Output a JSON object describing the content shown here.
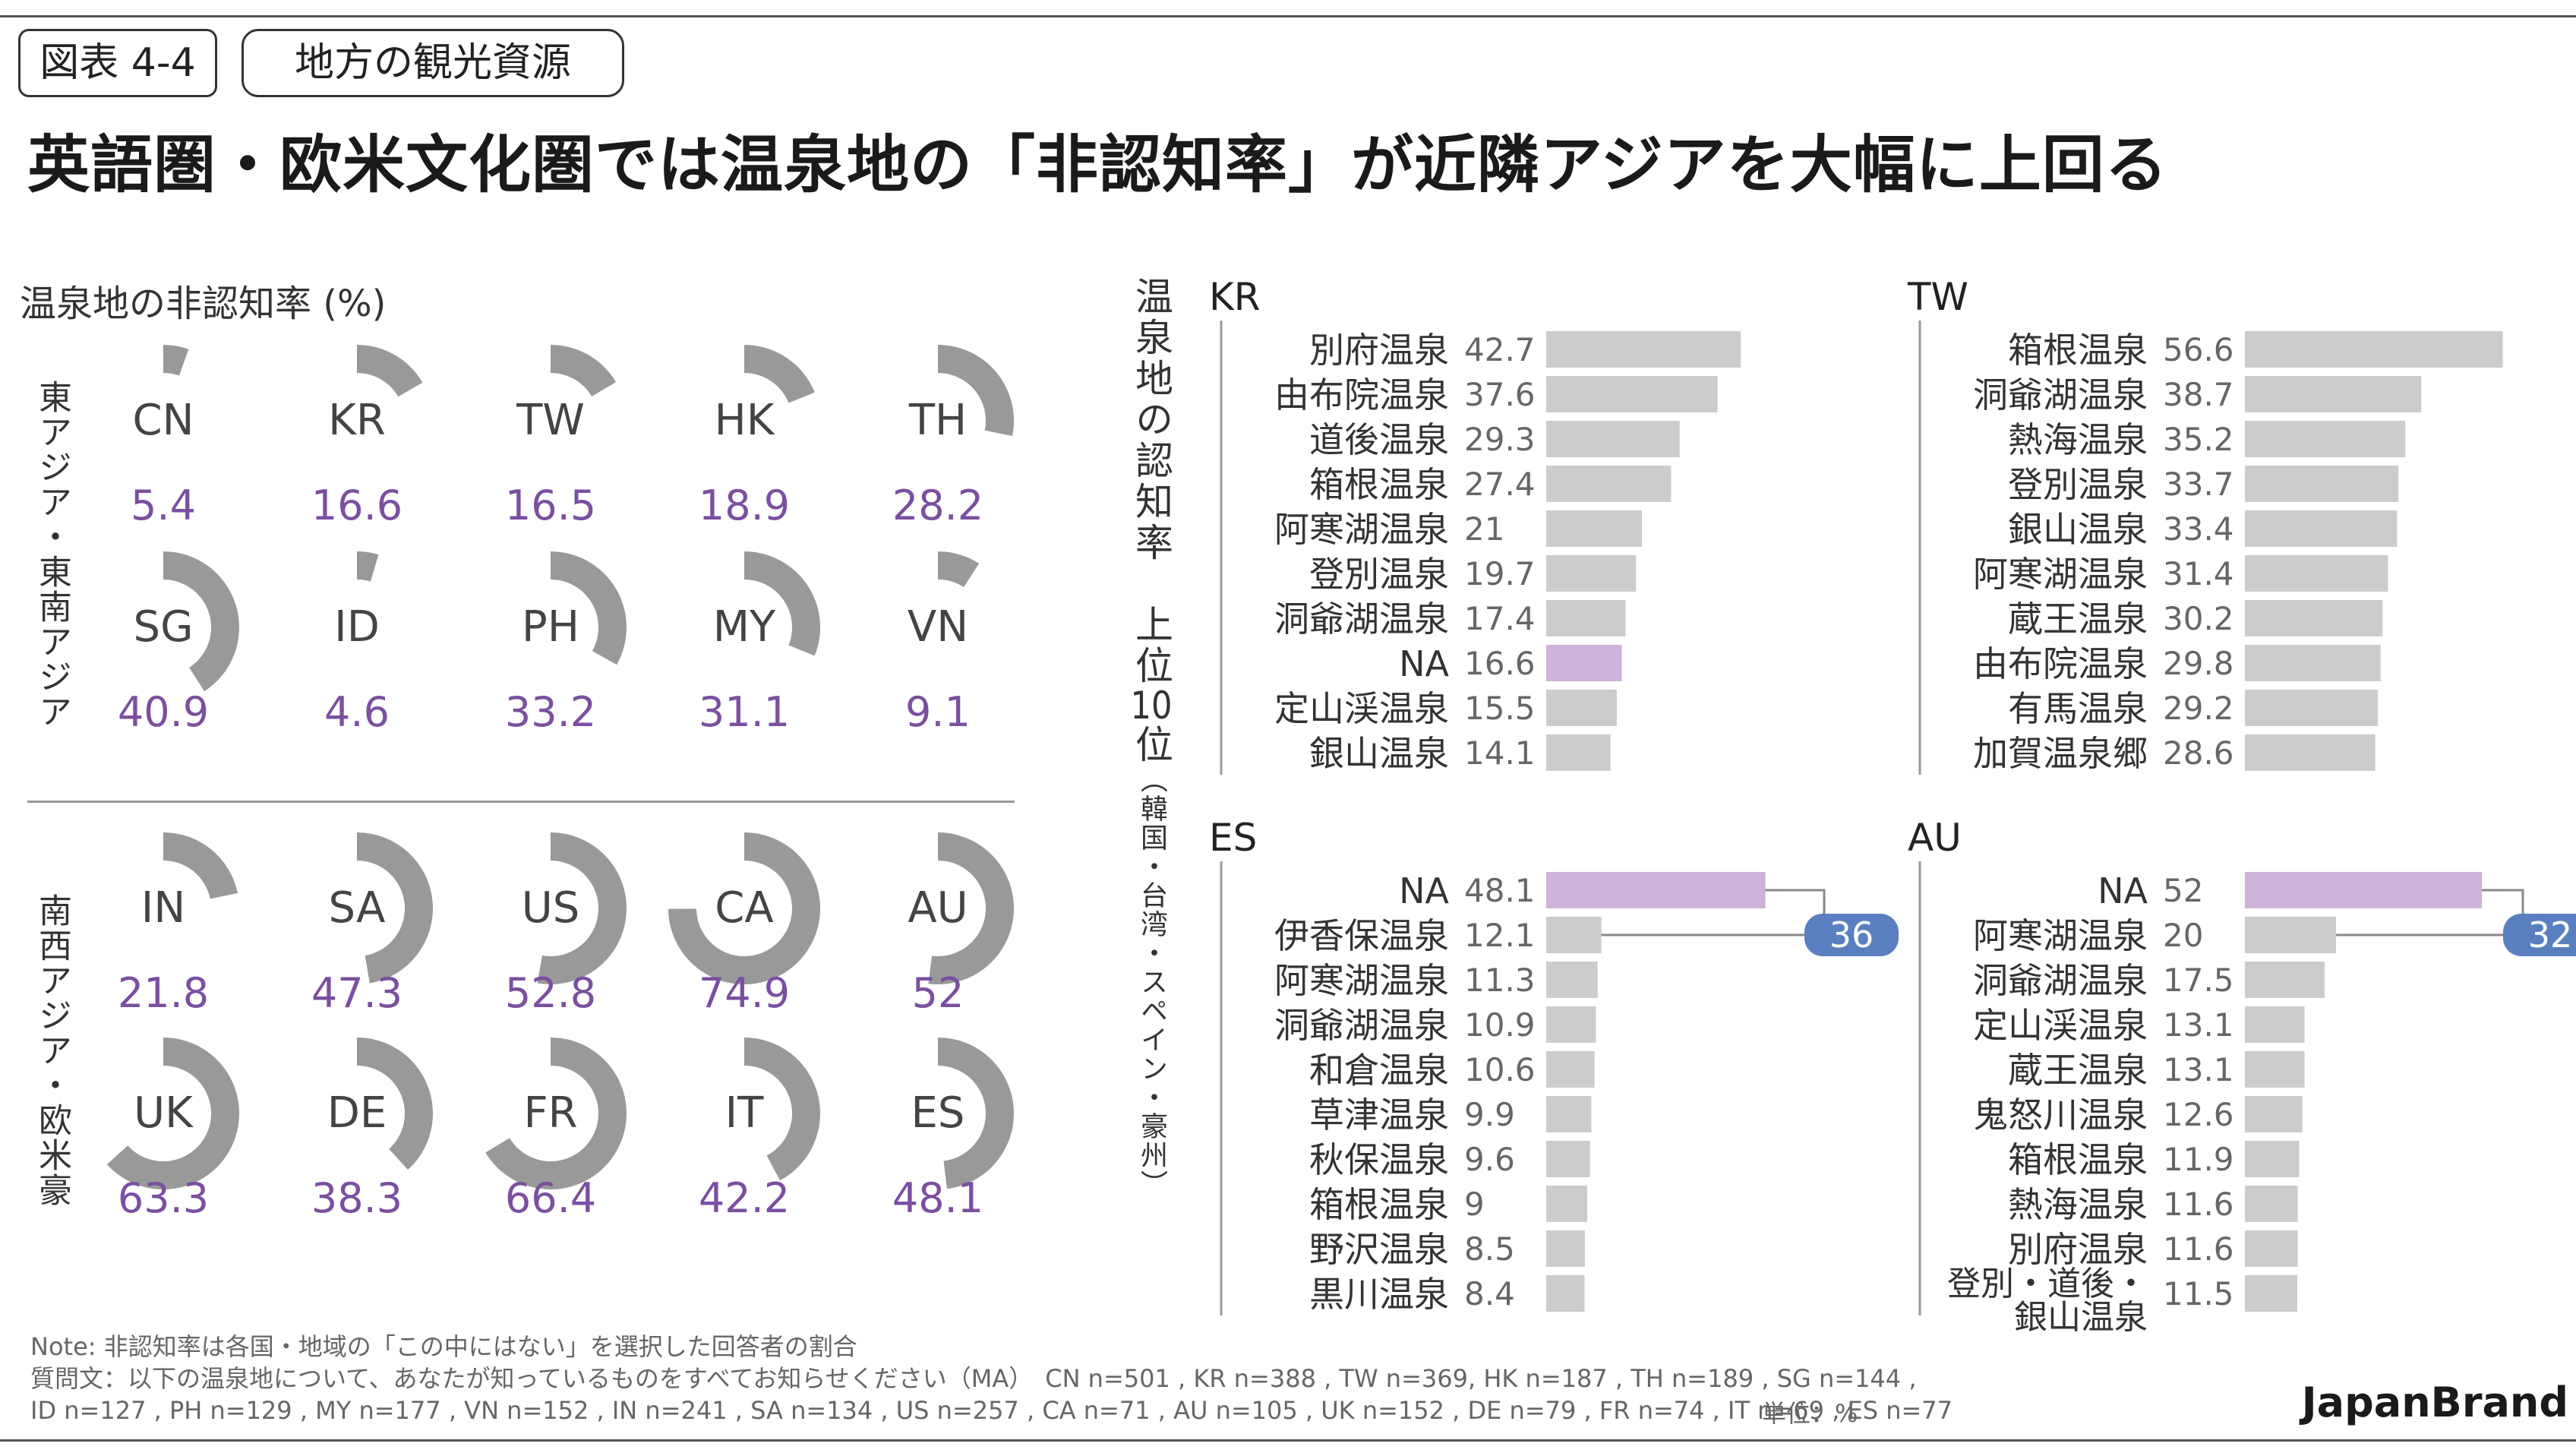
{
  "header": {
    "figure_tag": "図表 4-4",
    "subtitle_tag": "地方の観光資源",
    "title": "英語圏・欧米文化圏では温泉地の「非認知率」が近隣アジアを大幅に上回る"
  },
  "left_panel": {
    "subtitle": "温泉地の非認知率 (%)",
    "group1_label": "東アジア・東南アジア",
    "group2_label": "南西アジア・欧米豪"
  },
  "right_panel": {
    "vertical_title": "温泉地の認知率　上位",
    "rank_number": "10",
    "rank_suffix": "位",
    "regions_note": "（韓国・台湾・スペイン・豪州）"
  },
  "colors": {
    "ring": "#999999",
    "ring_bg": "#ffffff",
    "value_purple": "#7b4fa0",
    "bar_gray": "#cccccc",
    "bar_highlight": "#cdb2da",
    "callout_blue": "#5a7fc0"
  },
  "chart_data": [
    {
      "type": "pie",
      "title": "温泉地の非認知率 (%)",
      "series": [
        {
          "label": "CN",
          "value": 5.4,
          "value_text": "5.4"
        },
        {
          "label": "KR",
          "value": 16.6,
          "value_text": "16.6"
        },
        {
          "label": "TW",
          "value": 16.5,
          "value_text": "16.5"
        },
        {
          "label": "HK",
          "value": 18.9,
          "value_text": "18.9"
        },
        {
          "label": "TH",
          "value": 28.2,
          "value_text": "28.2"
        },
        {
          "label": "SG",
          "value": 40.9,
          "value_text": "40.9"
        },
        {
          "label": "ID",
          "value": 4.6,
          "value_text": "4.6"
        },
        {
          "label": "PH",
          "value": 33.2,
          "value_text": "33.2"
        },
        {
          "label": "MY",
          "value": 31.1,
          "value_text": "31.1"
        },
        {
          "label": "VN",
          "value": 9.1,
          "value_text": "9.1"
        },
        {
          "label": "IN",
          "value": 21.8,
          "value_text": "21.8"
        },
        {
          "label": "SA",
          "value": 47.3,
          "value_text": "47.3"
        },
        {
          "label": "US",
          "value": 52.8,
          "value_text": "52.8"
        },
        {
          "label": "CA",
          "value": 74.9,
          "value_text": "74.9"
        },
        {
          "label": "AU",
          "value": 52,
          "value_text": "52"
        },
        {
          "label": "UK",
          "value": 63.3,
          "value_text": "63.3"
        },
        {
          "label": "DE",
          "value": 38.3,
          "value_text": "38.3"
        },
        {
          "label": "FR",
          "value": 66.4,
          "value_text": "66.4"
        },
        {
          "label": "IT",
          "value": 42.2,
          "value_text": "42.2"
        },
        {
          "label": "ES",
          "value": 48.1,
          "value_text": "48.1"
        }
      ]
    },
    {
      "type": "bar",
      "title": "KR",
      "categories": [
        "別府温泉",
        "由布院温泉",
        "道後温泉",
        "箱根温泉",
        "阿寒湖温泉",
        "登別温泉",
        "洞爺湖温泉",
        "NA",
        "定山渓温泉",
        "銀山温泉"
      ],
      "values": [
        42.7,
        37.6,
        29.3,
        27.4,
        21,
        19.7,
        17.4,
        16.6,
        15.5,
        14.1
      ],
      "value_labels": [
        "42.7",
        "37.6",
        "29.3",
        "27.4",
        "21",
        "19.7",
        "17.4",
        "16.6",
        "15.5",
        "14.1"
      ],
      "highlight": "NA"
    },
    {
      "type": "bar",
      "title": "TW",
      "categories": [
        "箱根温泉",
        "洞爺湖温泉",
        "熱海温泉",
        "登別温泉",
        "銀山温泉",
        "阿寒湖温泉",
        "蔵王温泉",
        "由布院温泉",
        "有馬温泉",
        "加賀温泉郷"
      ],
      "values": [
        56.6,
        38.7,
        35.2,
        33.7,
        33.4,
        31.4,
        30.2,
        29.8,
        29.2,
        28.6
      ],
      "value_labels": [
        "56.6",
        "38.7",
        "35.2",
        "33.7",
        "33.4",
        "31.4",
        "30.2",
        "29.8",
        "29.2",
        "28.6"
      ]
    },
    {
      "type": "bar",
      "title": "ES",
      "categories": [
        "NA",
        "伊香保温泉",
        "阿寒湖温泉",
        "洞爺湖温泉",
        "和倉温泉",
        "草津温泉",
        "秋保温泉",
        "箱根温泉",
        "野沢温泉",
        "黒川温泉"
      ],
      "values": [
        48.1,
        12.1,
        11.3,
        10.9,
        10.6,
        9.9,
        9.6,
        9,
        8.5,
        8.4
      ],
      "value_labels": [
        "48.1",
        "12.1",
        "11.3",
        "10.9",
        "10.6",
        "9.9",
        "9.6",
        "9",
        "8.5",
        "8.4"
      ],
      "highlight": "NA",
      "callout": "36"
    },
    {
      "type": "bar",
      "title": "AU",
      "categories": [
        "NA",
        "阿寒湖温泉",
        "洞爺湖温泉",
        "定山渓温泉",
        "蔵王温泉",
        "鬼怒川温泉",
        "箱根温泉",
        "熱海温泉",
        "別府温泉",
        "登別・道後・銀山温泉"
      ],
      "category_lines": [
        [
          "NA"
        ],
        [
          "阿寒湖温泉"
        ],
        [
          "洞爺湖温泉"
        ],
        [
          "定山渓温泉"
        ],
        [
          "蔵王温泉"
        ],
        [
          "鬼怒川温泉"
        ],
        [
          "箱根温泉"
        ],
        [
          "熱海温泉"
        ],
        [
          "別府温泉"
        ],
        [
          "登別・道後・",
          "銀山温泉"
        ]
      ],
      "values": [
        52,
        20,
        17.5,
        13.1,
        13.1,
        12.6,
        11.9,
        11.6,
        11.6,
        11.5
      ],
      "value_labels": [
        "52",
        "20",
        "17.5",
        "13.1",
        "13.1",
        "12.6",
        "11.9",
        "11.6",
        "11.6",
        "11.5"
      ],
      "highlight": "NA",
      "callout": "32"
    }
  ],
  "footer": {
    "note": "Note: 非認知率は各国・地域の「この中にはない」を選択した回答者の割合",
    "question": "質問文：以下の温泉地について、あなたが知っているものをすべてお知らせください（MA）　CN n=501 , KR n=388 , TW n=369, HK n=187 , TH n=189 , SG n=144 ,",
    "samples": "ID n=127 , PH n=129 , MY n=177 , VN n=152 , IN n=241 , SA n=134 , US n=257 , CA n=71 , AU n=105 , UK n=152 , DE n=79 , FR n=74 , IT n=69 , ES n=77",
    "unit": "単位：%",
    "brand": "JapanBrand"
  }
}
